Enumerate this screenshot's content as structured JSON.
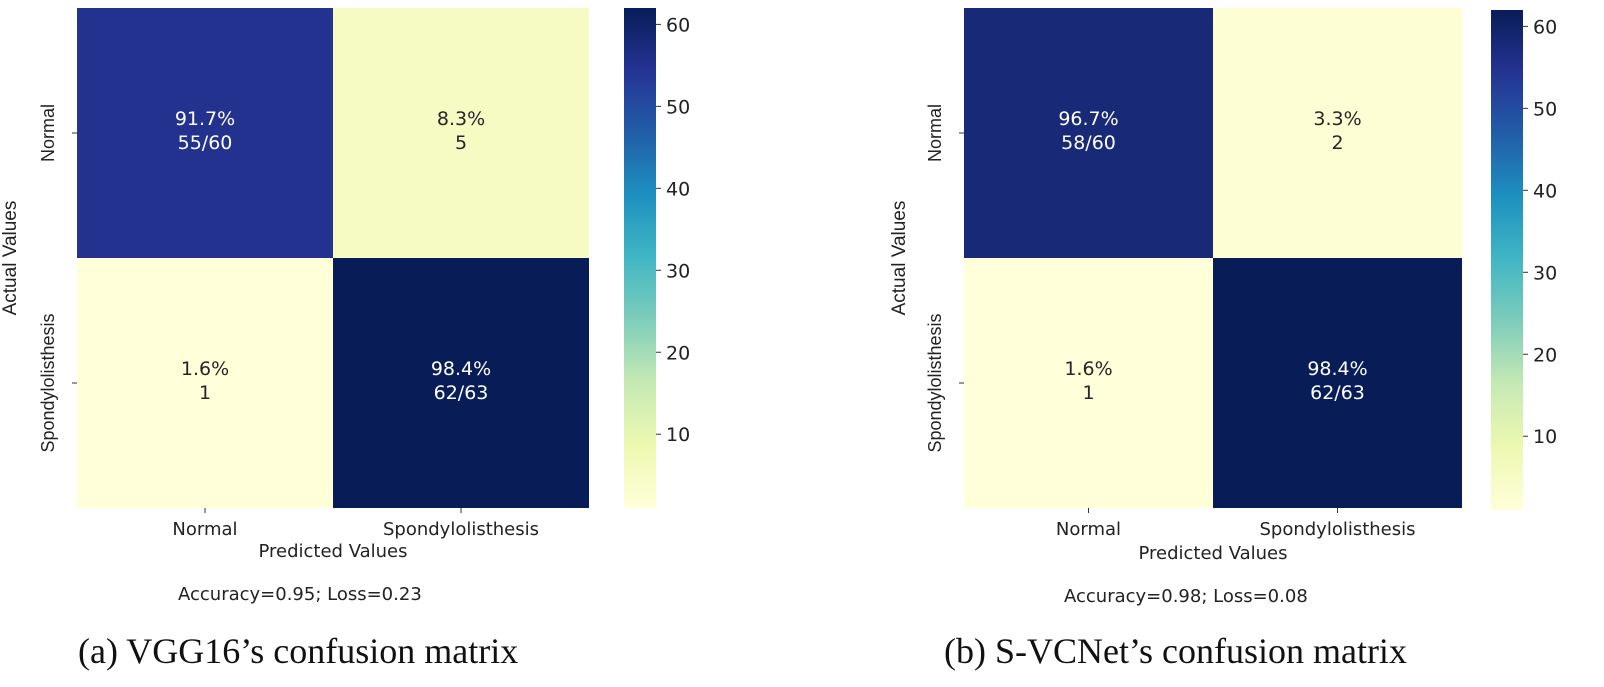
{
  "chart_data": [
    {
      "type": "heatmap",
      "id": "a",
      "colormap": "YlGnBu",
      "xlabel": "Predicted Values",
      "ylabel": "Actual Values",
      "x_categories": [
        "Normal",
        "Spondylolisthesis"
      ],
      "y_categories": [
        "Normal",
        "Spondylolisthesis"
      ],
      "values": [
        [
          55,
          5
        ],
        [
          1,
          62
        ]
      ],
      "cell_labels": [
        [
          {
            "percent": "91.7%",
            "detail": "55/60"
          },
          {
            "percent": "8.3%",
            "detail": "5"
          }
        ],
        [
          {
            "percent": "1.6%",
            "detail": "1"
          },
          {
            "percent": "98.4%",
            "detail": "62/63"
          }
        ]
      ],
      "colorbar": {
        "min": 1,
        "max": 62,
        "ticks": [
          10,
          20,
          30,
          40,
          50,
          60
        ]
      },
      "metrics": "Accuracy=0.95; Loss=0.23",
      "caption": "(a) VGG16’s confusion matrix"
    },
    {
      "type": "heatmap",
      "id": "b",
      "colormap": "YlGnBu",
      "xlabel": "Predicted Values",
      "ylabel": "Actual Values",
      "x_categories": [
        "Normal",
        "Spondylolisthesis"
      ],
      "y_categories": [
        "Normal",
        "Spondylolisthesis"
      ],
      "values": [
        [
          58,
          2
        ],
        [
          1,
          62
        ]
      ],
      "cell_labels": [
        [
          {
            "percent": "96.7%",
            "detail": "58/60"
          },
          {
            "percent": "3.3%",
            "detail": "2"
          }
        ],
        [
          {
            "percent": "1.6%",
            "detail": "1"
          },
          {
            "percent": "98.4%",
            "detail": "62/63"
          }
        ]
      ],
      "colorbar": {
        "min": 1,
        "max": 62,
        "ticks": [
          10,
          20,
          30,
          40,
          50,
          60
        ]
      },
      "metrics": "Accuracy=0.98; Loss=0.08",
      "caption": "(b) S-VCNet’s confusion matrix"
    }
  ]
}
